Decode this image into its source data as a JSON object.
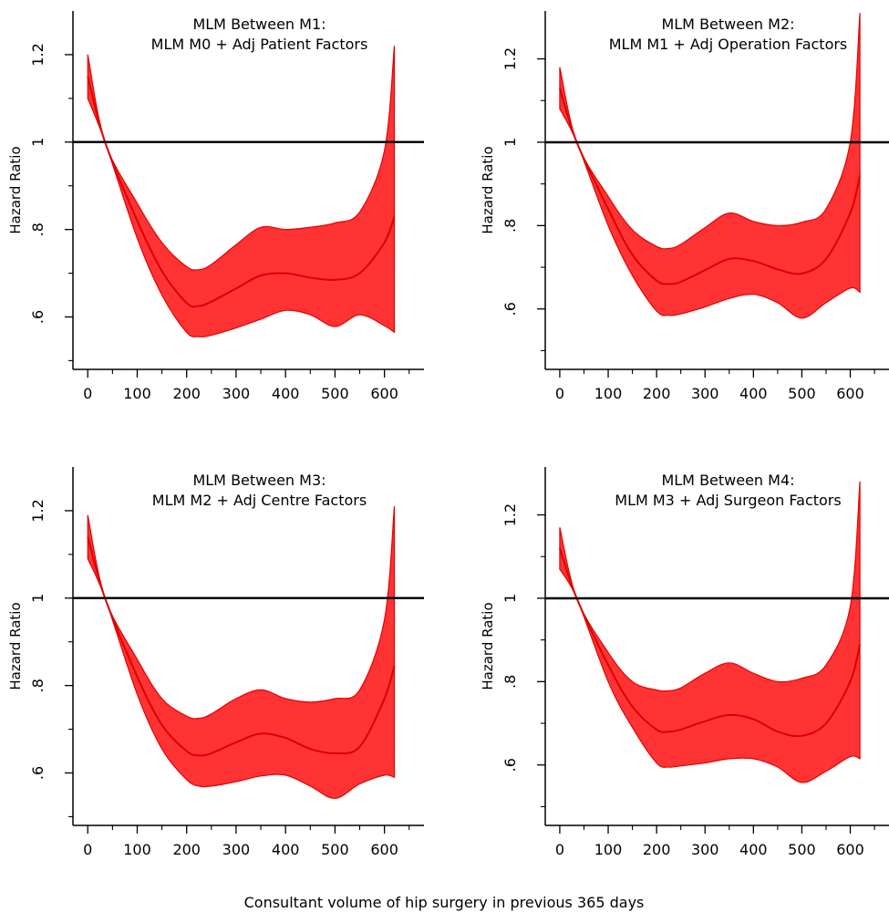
{
  "footer": {
    "xlabel": "Consultant volume of hip surgery in previous 365 days"
  },
  "chart_data": [
    {
      "type": "area",
      "title_line1": "MLM Between M1:",
      "title_line2": "MLM M0 + Adj Patient Factors",
      "ylabel": "Hazard Ratio",
      "xlim": [
        -30,
        680
      ],
      "ylim": [
        0.48,
        1.3
      ],
      "xticks": [
        0,
        100,
        200,
        300,
        400,
        500,
        600
      ],
      "xtick_labels": [
        "0",
        "100",
        "200",
        "300",
        "400",
        "500",
        "600"
      ],
      "yticks": [
        0.6,
        0.8,
        1.0,
        1.2
      ],
      "ytick_labels": [
        ".6",
        ".8",
        "1",
        "1.2"
      ],
      "yminor": [
        0.5,
        0.7,
        0.9,
        1.1
      ],
      "reference_line": 1.0,
      "x": [
        0,
        35,
        100,
        150,
        200,
        225,
        250,
        300,
        350,
        400,
        450,
        500,
        550,
        600,
        620
      ],
      "estimate": [
        1.15,
        1.0,
        0.82,
        0.705,
        0.632,
        0.625,
        0.635,
        0.665,
        0.695,
        0.7,
        0.69,
        0.685,
        0.7,
        0.77,
        0.83
      ],
      "upper": [
        1.2,
        1.0,
        0.86,
        0.77,
        0.715,
        0.708,
        0.72,
        0.765,
        0.805,
        0.8,
        0.805,
        0.815,
        0.84,
        0.98,
        1.22
      ],
      "lower": [
        1.1,
        1.0,
        0.78,
        0.65,
        0.565,
        0.555,
        0.558,
        0.575,
        0.595,
        0.615,
        0.605,
        0.578,
        0.605,
        0.58,
        0.565
      ]
    },
    {
      "type": "area",
      "title_line1": "MLM Between M2:",
      "title_line2": "MLM M1 + Adj Operation Factors",
      "ylabel": "Hazard Ratio",
      "xlim": [
        -30,
        680
      ],
      "ylim": [
        0.455,
        1.315
      ],
      "xticks": [
        0,
        100,
        200,
        300,
        400,
        500,
        600
      ],
      "xtick_labels": [
        "0",
        "100",
        "200",
        "300",
        "400",
        "500",
        "600"
      ],
      "yticks": [
        0.6,
        0.8,
        1.0,
        1.2
      ],
      "ytick_labels": [
        ".6",
        ".8",
        "1",
        "1.2"
      ],
      "yminor": [
        0.5,
        0.7,
        0.9,
        1.1
      ],
      "reference_line": 1.0,
      "x": [
        0,
        35,
        100,
        150,
        200,
        225,
        250,
        300,
        350,
        400,
        450,
        500,
        550,
        600,
        620
      ],
      "estimate": [
        1.13,
        1.0,
        0.84,
        0.73,
        0.668,
        0.66,
        0.665,
        0.693,
        0.72,
        0.715,
        0.695,
        0.685,
        0.72,
        0.83,
        0.92
      ],
      "upper": [
        1.18,
        1.0,
        0.87,
        0.79,
        0.75,
        0.745,
        0.755,
        0.795,
        0.83,
        0.81,
        0.8,
        0.808,
        0.84,
        1.0,
        1.31
      ],
      "lower": [
        1.08,
        1.0,
        0.8,
        0.68,
        0.595,
        0.585,
        0.588,
        0.605,
        0.625,
        0.635,
        0.615,
        0.578,
        0.615,
        0.65,
        0.64
      ]
    },
    {
      "type": "area",
      "title_line1": "MLM Between M3:",
      "title_line2": "MLM M2 + Adj Centre Factors",
      "ylabel": "Hazard Ratio",
      "xlim": [
        -30,
        680
      ],
      "ylim": [
        0.48,
        1.3
      ],
      "xticks": [
        0,
        100,
        200,
        300,
        400,
        500,
        600
      ],
      "xtick_labels": [
        "0",
        "100",
        "200",
        "300",
        "400",
        "500",
        "600"
      ],
      "yticks": [
        0.6,
        0.8,
        1.0,
        1.2
      ],
      "ytick_labels": [
        ".6",
        ".8",
        "1",
        "1.2"
      ],
      "yminor": [
        0.5,
        0.7,
        0.9,
        1.1
      ],
      "reference_line": 1.0,
      "x": [
        0,
        35,
        100,
        150,
        200,
        225,
        250,
        300,
        350,
        400,
        450,
        500,
        550,
        600,
        620
      ],
      "estimate": [
        1.14,
        1.0,
        0.82,
        0.71,
        0.65,
        0.64,
        0.645,
        0.67,
        0.69,
        0.68,
        0.655,
        0.645,
        0.66,
        0.77,
        0.845
      ],
      "upper": [
        1.19,
        1.0,
        0.86,
        0.77,
        0.73,
        0.725,
        0.735,
        0.77,
        0.79,
        0.77,
        0.762,
        0.77,
        0.79,
        0.95,
        1.21
      ],
      "lower": [
        1.09,
        1.0,
        0.78,
        0.655,
        0.585,
        0.57,
        0.57,
        0.58,
        0.593,
        0.595,
        0.57,
        0.542,
        0.575,
        0.595,
        0.59
      ]
    },
    {
      "type": "area",
      "title_line1": "MLM Between M4:",
      "title_line2": "MLM M3 + Adj Surgeon Factors",
      "ylabel": "Hazard Ratio",
      "xlim": [
        -30,
        680
      ],
      "ylim": [
        0.455,
        1.315
      ],
      "xticks": [
        0,
        100,
        200,
        300,
        400,
        500,
        600
      ],
      "xtick_labels": [
        "0",
        "100",
        "200",
        "300",
        "400",
        "500",
        "600"
      ],
      "yticks": [
        0.6,
        0.8,
        1.0,
        1.2
      ],
      "ytick_labels": [
        ".6",
        ".8",
        "1",
        "1.2"
      ],
      "yminor": [
        0.5,
        0.7,
        0.9,
        1.1
      ],
      "reference_line": 1.0,
      "x": [
        0,
        35,
        100,
        150,
        200,
        225,
        250,
        300,
        350,
        400,
        450,
        500,
        550,
        600,
        620
      ],
      "estimate": [
        1.12,
        1.0,
        0.84,
        0.74,
        0.685,
        0.68,
        0.685,
        0.705,
        0.72,
        0.71,
        0.68,
        0.67,
        0.7,
        0.8,
        0.89
      ],
      "upper": [
        1.17,
        1.0,
        0.87,
        0.8,
        0.78,
        0.778,
        0.785,
        0.82,
        0.845,
        0.82,
        0.8,
        0.808,
        0.84,
        0.98,
        1.28
      ],
      "lower": [
        1.07,
        1.0,
        0.8,
        0.69,
        0.605,
        0.595,
        0.598,
        0.605,
        0.615,
        0.615,
        0.595,
        0.558,
        0.585,
        0.62,
        0.615
      ]
    }
  ],
  "colors": {
    "band": "#ff3333",
    "band_edge": "#e60000",
    "estimate_line": "#dd0000",
    "reference_line": "#000000",
    "axis": "#000000"
  }
}
